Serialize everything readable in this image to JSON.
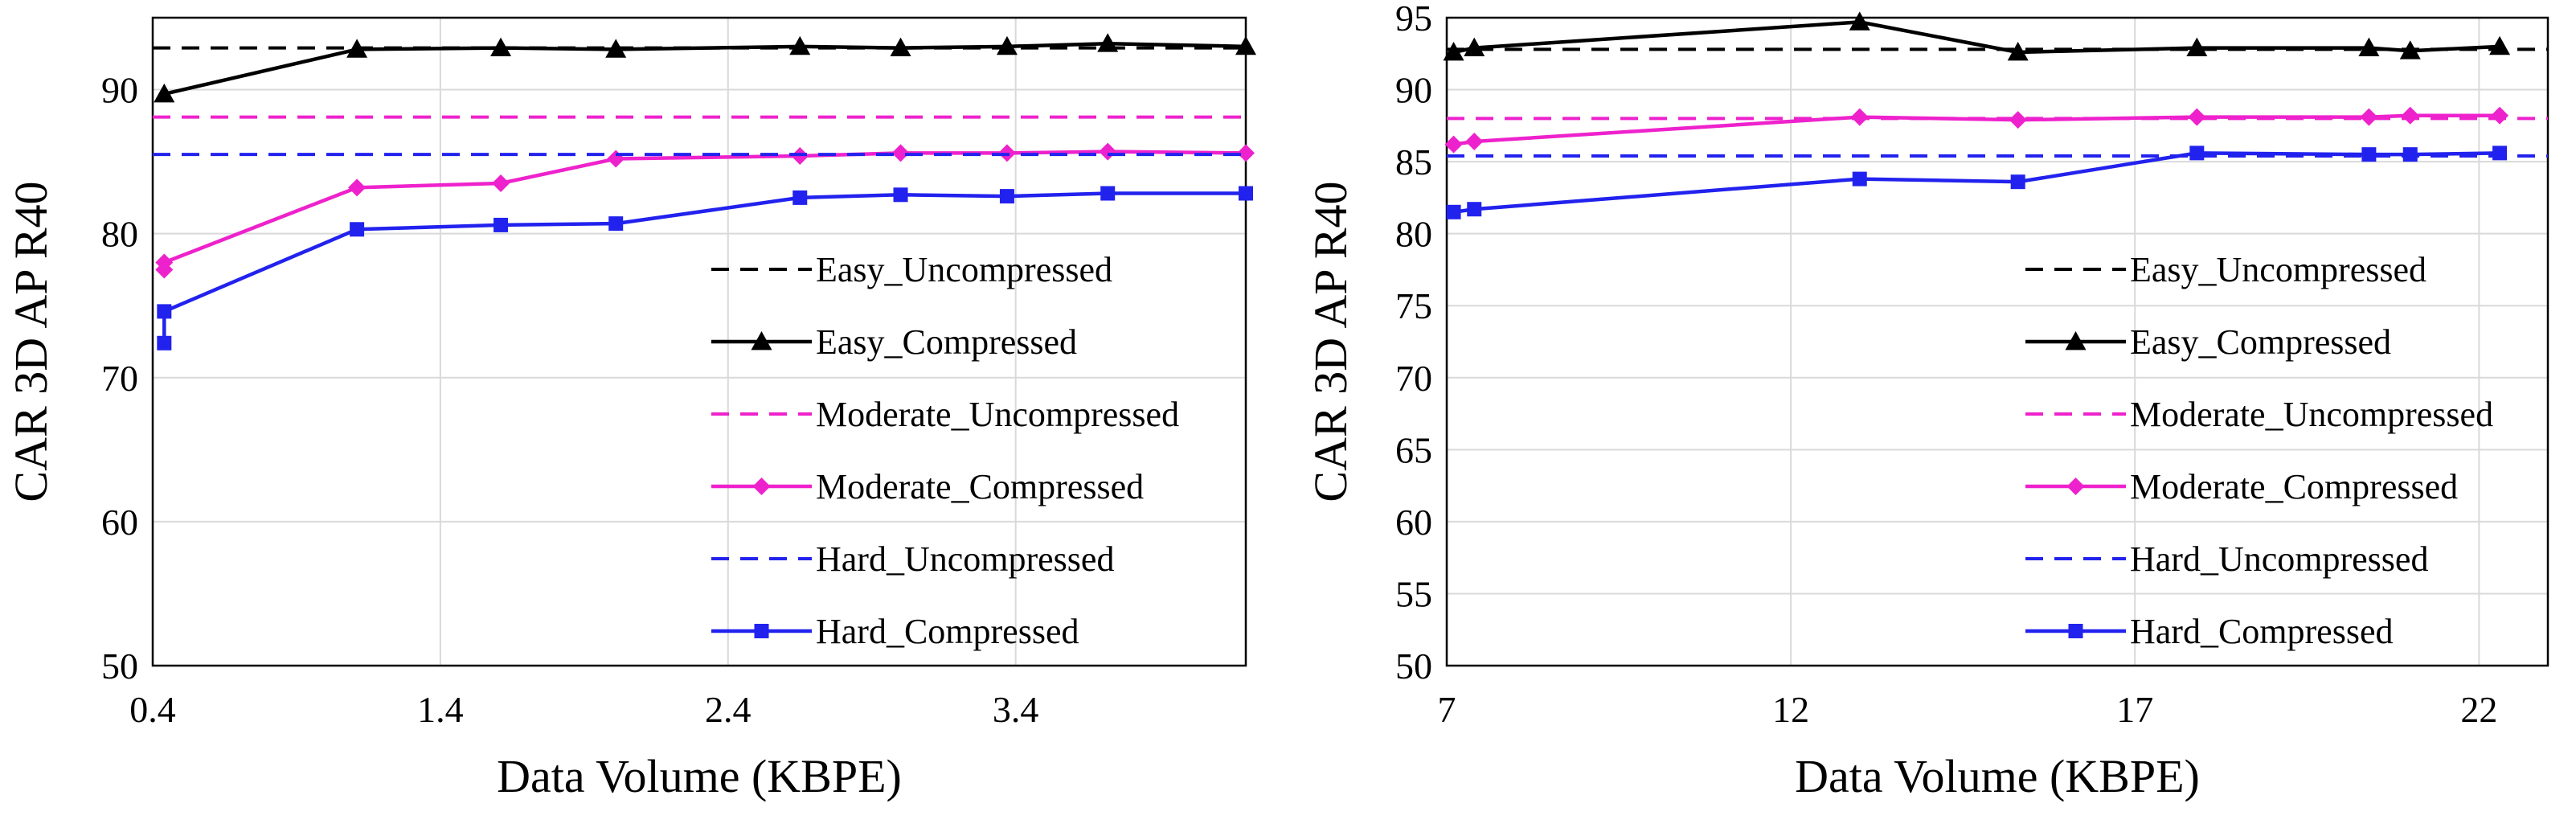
{
  "chart_data": [
    {
      "type": "line",
      "title": "",
      "xlabel": "Data Volume (KBPE)",
      "ylabel": "CAR 3D AP R40",
      "xlim": [
        0.4,
        4.2
      ],
      "ylim": [
        50,
        95
      ],
      "xticks": [
        0.4,
        1.4,
        2.4,
        3.4
      ],
      "xtick_labels": [
        "0.4",
        "1.4",
        "2.4",
        "3.4"
      ],
      "yticks": [
        50,
        60,
        70,
        80,
        90
      ],
      "ytick_labels": [
        "50",
        "60",
        "70",
        "80",
        "90"
      ],
      "grid": true,
      "legend_position": "bottom-right",
      "series": [
        {
          "name": "Easy_Uncompressed",
          "color": "#000000",
          "dashed": true,
          "marker": "none",
          "x": [
            0.4,
            4.2
          ],
          "y": [
            92.9,
            92.9
          ]
        },
        {
          "name": "Easy_Compressed",
          "color": "#000000",
          "dashed": false,
          "marker": "triangle",
          "x": [
            0.44,
            1.11,
            1.61,
            2.01,
            2.65,
            3.0,
            3.37,
            3.72,
            4.2
          ],
          "y": [
            89.7,
            92.8,
            92.9,
            92.8,
            93.0,
            92.9,
            93.0,
            93.2,
            93.0
          ]
        },
        {
          "name": "Moderate_Uncompressed",
          "color": "#ee22cc",
          "dashed": true,
          "marker": "none",
          "x": [
            0.4,
            4.2
          ],
          "y": [
            88.1,
            88.1
          ]
        },
        {
          "name": "Moderate_Compressed",
          "color": "#ee22cc",
          "dashed": false,
          "marker": "diamond",
          "x": [
            0.44,
            0.44,
            1.11,
            1.61,
            2.01,
            2.65,
            3.0,
            3.37,
            3.72,
            4.2
          ],
          "y": [
            77.5,
            78.0,
            83.2,
            83.5,
            85.2,
            85.4,
            85.6,
            85.6,
            85.7,
            85.6
          ]
        },
        {
          "name": "Hard_Uncompressed",
          "color": "#2222ee",
          "dashed": true,
          "marker": "none",
          "x": [
            0.4,
            4.2
          ],
          "y": [
            85.5,
            85.5
          ]
        },
        {
          "name": "Hard_Compressed",
          "color": "#2222ee",
          "dashed": false,
          "marker": "square",
          "x": [
            0.44,
            0.44,
            1.11,
            1.61,
            2.01,
            2.65,
            3.0,
            3.37,
            3.72,
            4.2
          ],
          "y": [
            72.4,
            74.6,
            80.3,
            80.6,
            80.7,
            82.5,
            82.7,
            82.6,
            82.8,
            82.8
          ]
        }
      ]
    },
    {
      "type": "line",
      "title": "",
      "xlabel": "Data Volume (KBPE)",
      "ylabel": "CAR 3D AP R40",
      "xlim": [
        7,
        23
      ],
      "ylim": [
        50,
        95
      ],
      "xticks": [
        7,
        12,
        17,
        22
      ],
      "xtick_labels": [
        "7",
        "12",
        "17",
        "22"
      ],
      "yticks": [
        50,
        55,
        60,
        65,
        70,
        75,
        80,
        85,
        90,
        95
      ],
      "ytick_labels": [
        "50",
        "55",
        "60",
        "65",
        "70",
        "75",
        "80",
        "85",
        "90",
        "95"
      ],
      "grid": true,
      "legend_position": "bottom-right",
      "series": [
        {
          "name": "Easy_Uncompressed",
          "color": "#000000",
          "dashed": true,
          "marker": "none",
          "x": [
            7,
            23
          ],
          "y": [
            92.8,
            92.8
          ]
        },
        {
          "name": "Easy_Compressed",
          "color": "#000000",
          "dashed": false,
          "marker": "triangle",
          "x": [
            7.1,
            7.4,
            13.0,
            15.3,
            17.9,
            20.4,
            21.0,
            22.3
          ],
          "y": [
            92.6,
            92.9,
            94.7,
            92.6,
            92.9,
            92.9,
            92.7,
            93.0
          ]
        },
        {
          "name": "Moderate_Uncompressed",
          "color": "#ee22cc",
          "dashed": true,
          "marker": "none",
          "x": [
            7,
            23
          ],
          "y": [
            88.0,
            88.0
          ]
        },
        {
          "name": "Moderate_Compressed",
          "color": "#ee22cc",
          "dashed": false,
          "marker": "diamond",
          "x": [
            7.1,
            7.4,
            13.0,
            15.3,
            17.9,
            20.4,
            21.0,
            22.3
          ],
          "y": [
            86.2,
            86.4,
            88.1,
            87.9,
            88.1,
            88.1,
            88.2,
            88.2
          ]
        },
        {
          "name": "Hard_Uncompressed",
          "color": "#2222ee",
          "dashed": true,
          "marker": "none",
          "x": [
            7,
            23
          ],
          "y": [
            85.4,
            85.4
          ]
        },
        {
          "name": "Hard_Compressed",
          "color": "#2222ee",
          "dashed": false,
          "marker": "square",
          "x": [
            7.1,
            7.4,
            13.0,
            15.3,
            17.9,
            20.4,
            21.0,
            22.3
          ],
          "y": [
            81.5,
            81.7,
            83.8,
            83.6,
            85.6,
            85.5,
            85.5,
            85.6
          ]
        }
      ]
    }
  ]
}
